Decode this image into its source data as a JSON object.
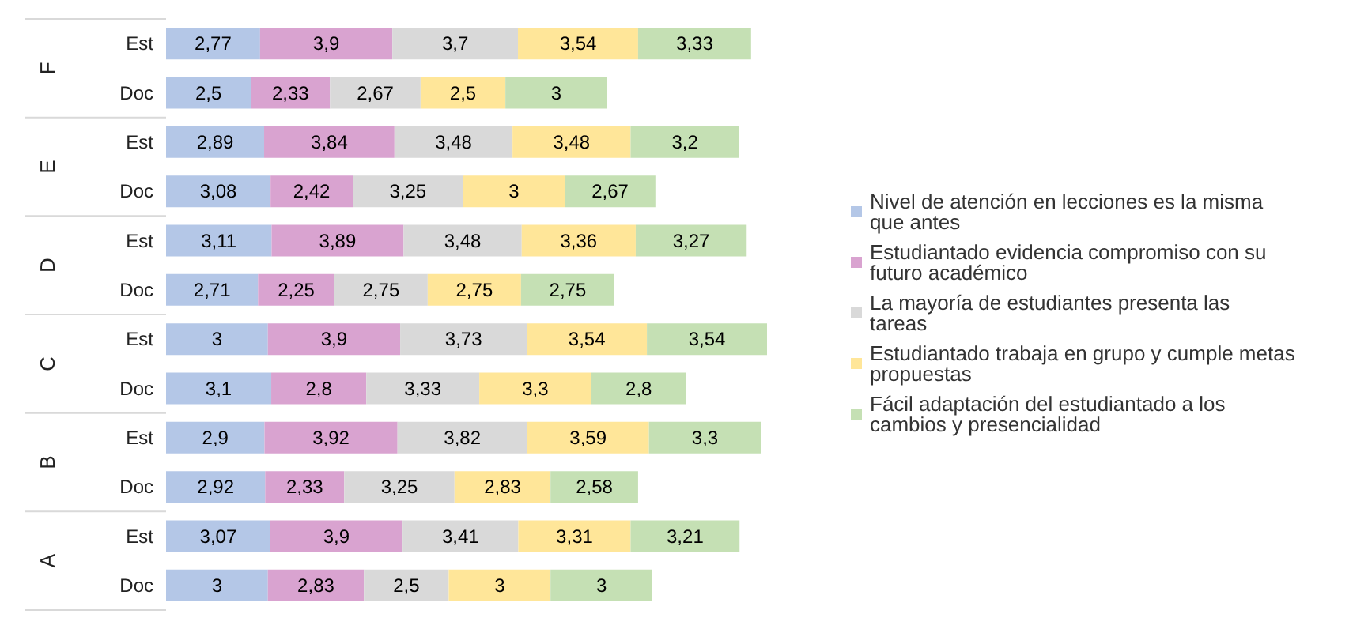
{
  "chart_data": {
    "type": "bar",
    "orientation": "horizontal",
    "stacked": true,
    "legend": "right",
    "categories": [
      "Est",
      "Doc",
      "Est",
      "Doc",
      "Est",
      "Doc",
      "Est",
      "Doc",
      "Est",
      "Doc",
      "Est",
      "Doc"
    ],
    "annotations": [
      "F",
      "E",
      "D",
      "C",
      "B",
      "A"
    ],
    "series": [
      {
        "name": "Nivel de atención en lecciones es la misma que antes",
        "color": "#b4c7e7",
        "values": [
          2.77,
          2.5,
          2.89,
          3.08,
          3.11,
          2.71,
          3,
          3.1,
          2.9,
          2.92,
          3.07,
          3
        ],
        "value_labels": [
          "2,77",
          "2,5",
          "2,89",
          "3,08",
          "3,11",
          "2,71",
          "3",
          "3,1",
          "2,9",
          "2,92",
          "3,07",
          "3"
        ]
      },
      {
        "name": "Estudiantado evidencia compromiso con su futuro académico",
        "color": "#d9a3d0",
        "values": [
          3.9,
          2.33,
          3.84,
          2.42,
          3.89,
          2.25,
          3.9,
          2.8,
          3.92,
          2.33,
          3.9,
          2.83
        ],
        "value_labels": [
          "3,9",
          "2,33",
          "3,84",
          "2,42",
          "3,89",
          "2,25",
          "3,9",
          "2,8",
          "3,92",
          "2,33",
          "3,9",
          "2,83"
        ]
      },
      {
        "name": "La mayoría de estudiantes presenta las tareas",
        "color": "#d9d9d9",
        "values": [
          3.7,
          2.67,
          3.48,
          3.25,
          3.48,
          2.75,
          3.73,
          3.33,
          3.82,
          3.25,
          3.41,
          2.5
        ],
        "value_labels": [
          "3,7",
          "2,67",
          "3,48",
          "3,25",
          "3,48",
          "2,75",
          "3,73",
          "3,33",
          "3,82",
          "3,25",
          "3,41",
          "2,5"
        ]
      },
      {
        "name": "Estudiantado trabaja en grupo y cumple metas propuestas",
        "color": "#ffe699",
        "values": [
          3.54,
          2.5,
          3.48,
          3,
          3.36,
          2.75,
          3.54,
          3.3,
          3.59,
          2.83,
          3.31,
          3
        ],
        "value_labels": [
          "3,54",
          "2,5",
          "3,48",
          "3",
          "3,36",
          "2,75",
          "3,54",
          "3,3",
          "3,59",
          "2,83",
          "3,31",
          "3"
        ]
      },
      {
        "name": "Fácil adaptación del estudiantado a los cambios y presencialidad",
        "color": "#c5e0b4",
        "values": [
          3.33,
          3,
          3.2,
          2.67,
          3.27,
          2.75,
          3.54,
          2.8,
          3.3,
          2.58,
          3.21,
          3
        ],
        "value_labels": [
          "3,33",
          "3",
          "3,2",
          "2,67",
          "3,27",
          "2,75",
          "3,54",
          "2,8",
          "3,3",
          "2,58",
          "3,21",
          "3"
        ]
      }
    ]
  }
}
